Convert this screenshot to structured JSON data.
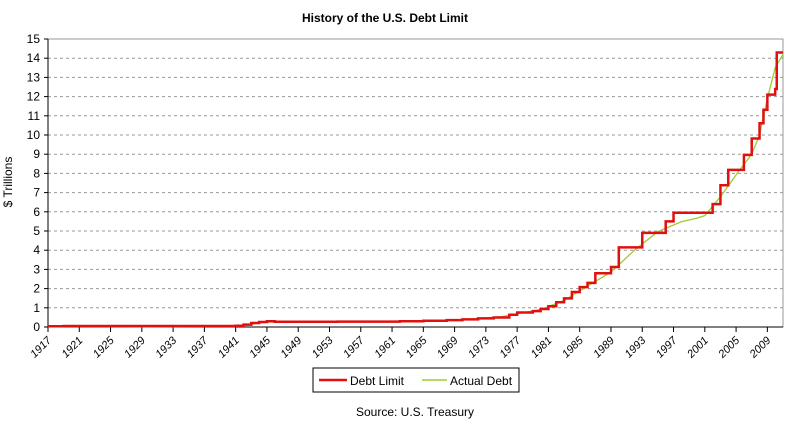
{
  "chart_data": {
    "type": "line",
    "title": "History of the U.S. Debt Limit",
    "xlabel": "",
    "ylabel": "$ Trillions",
    "xlim": [
      1917,
      2011
    ],
    "ylim": [
      0,
      15
    ],
    "yticks": [
      "0",
      "1",
      "2",
      "3",
      "4",
      "5",
      "6",
      "7",
      "8",
      "9",
      "10",
      "11",
      "12",
      "13",
      "14",
      "15"
    ],
    "xticks": [
      "1917",
      "1921",
      "1925",
      "1929",
      "1933",
      "1937",
      "1941",
      "1945",
      "1949",
      "1953",
      "1957",
      "1961",
      "1965",
      "1969",
      "1973",
      "1977",
      "1981",
      "1985",
      "1989",
      "1993",
      "1997",
      "2001",
      "2005",
      "2009"
    ],
    "grid": true,
    "legend": "bottom",
    "source": "Source: U.S. Treasury",
    "series": [
      {
        "name": "Debt Limit",
        "color": "#e01010",
        "step": true,
        "x": [
          1917,
          1919,
          1939,
          1941,
          1942,
          1943,
          1944,
          1945,
          1946,
          1954,
          1958,
          1962,
          1965,
          1968,
          1970,
          1972,
          1974,
          1976,
          1977,
          1979,
          1980,
          1981,
          1982,
          1983,
          1984,
          1985,
          1986,
          1987,
          1989,
          1990,
          1993,
          1996,
          1997,
          2002,
          2003,
          2004,
          2006,
          2007,
          2008,
          2008.5,
          2009,
          2010,
          2010.2,
          2011
        ],
        "y": [
          0.04,
          0.05,
          0.05,
          0.065,
          0.125,
          0.21,
          0.26,
          0.3,
          0.275,
          0.281,
          0.283,
          0.3,
          0.328,
          0.358,
          0.395,
          0.45,
          0.495,
          0.636,
          0.752,
          0.83,
          0.935,
          1.079,
          1.29,
          1.49,
          1.82,
          2.079,
          2.3,
          2.8,
          3.123,
          4.145,
          4.9,
          5.5,
          5.95,
          6.4,
          7.384,
          8.184,
          8.965,
          9.815,
          10.615,
          11.315,
          12.104,
          12.394,
          14.294,
          14.294
        ]
      },
      {
        "name": "Actual Debt",
        "color": "#9acd32",
        "step": false,
        "x": [
          1917,
          1919,
          1930,
          1935,
          1940,
          1942,
          1943,
          1944,
          1945,
          1946,
          1950,
          1955,
          1960,
          1965,
          1970,
          1975,
          1980,
          1983,
          1986,
          1989,
          1992,
          1995,
          1998,
          2000,
          2001,
          2003,
          2005,
          2007,
          2008,
          2009,
          2010,
          2011
        ],
        "y": [
          0.01,
          0.025,
          0.016,
          0.03,
          0.043,
          0.07,
          0.14,
          0.2,
          0.26,
          0.27,
          0.257,
          0.274,
          0.29,
          0.32,
          0.38,
          0.54,
          0.91,
          1.38,
          2.13,
          2.86,
          4.0,
          4.97,
          5.48,
          5.67,
          5.8,
          6.78,
          7.93,
          9.0,
          10.0,
          11.9,
          13.5,
          14.2
        ]
      }
    ]
  }
}
